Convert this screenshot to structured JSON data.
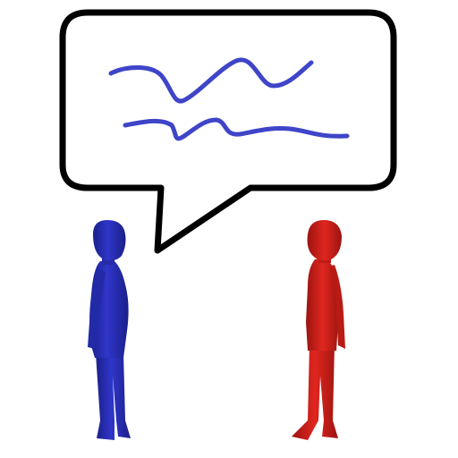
{
  "colors": {
    "background": "#ffffff",
    "bubble_fill": "#ffffff",
    "bubble_stroke": "#000000",
    "scribble": "#3f45c8",
    "speaker_left": "#2f36c9",
    "speaker_left_shade": "#1b1f8a",
    "speaker_right": "#e0261f",
    "speaker_right_shade": "#9c1410"
  },
  "icons": {
    "bubble": "speech-bubble-icon",
    "left_figure": "person-blue-icon",
    "right_figure": "person-red-icon"
  }
}
